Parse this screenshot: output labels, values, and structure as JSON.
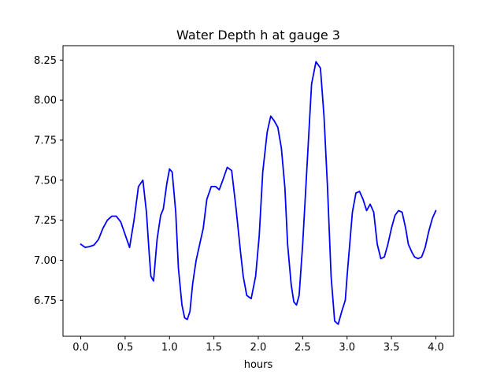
{
  "chart_data": {
    "type": "line",
    "title": "Water Depth h at gauge 3",
    "xlabel": "hours",
    "ylabel": "",
    "xlim": [
      -0.2,
      4.2
    ],
    "ylim": [
      6.525,
      8.34
    ],
    "xticks": [
      "0.0",
      "0.5",
      "1.0",
      "1.5",
      "2.0",
      "2.5",
      "3.0",
      "3.5",
      "4.0"
    ],
    "yticks": [
      "6.75",
      "7.00",
      "7.25",
      "7.50",
      "7.75",
      "8.00",
      "8.25"
    ],
    "grid": false,
    "series_color": "#0000ff",
    "series": [
      {
        "x": [
          0.0,
          0.05,
          0.1,
          0.15,
          0.2,
          0.25,
          0.3,
          0.35,
          0.4,
          0.45,
          0.5,
          0.55,
          0.6,
          0.65,
          0.7,
          0.74,
          0.77,
          0.79,
          0.82,
          0.86,
          0.9,
          0.93,
          0.97,
          1.0,
          1.03,
          1.07,
          1.1,
          1.14,
          1.17,
          1.2,
          1.23,
          1.26,
          1.3,
          1.34,
          1.38,
          1.42,
          1.47,
          1.52,
          1.56,
          1.6,
          1.65,
          1.7,
          1.75,
          1.8,
          1.83,
          1.87,
          1.92,
          1.97,
          2.01,
          2.05,
          2.1,
          2.14,
          2.18,
          2.22,
          2.26,
          2.3,
          2.33,
          2.37,
          2.4,
          2.43,
          2.46,
          2.5,
          2.55,
          2.6,
          2.65,
          2.7,
          2.74,
          2.78,
          2.82,
          2.86,
          2.9,
          2.94,
          2.98,
          3.0,
          3.03,
          3.06,
          3.1,
          3.14,
          3.18,
          3.22,
          3.26,
          3.3,
          3.34,
          3.38,
          3.42,
          3.46,
          3.5,
          3.54,
          3.58,
          3.62,
          3.66,
          3.69,
          3.73,
          3.76,
          3.8,
          3.84,
          3.88,
          3.92,
          3.96,
          4.0
        ],
        "y": [
          7.1,
          7.08,
          7.085,
          7.095,
          7.13,
          7.2,
          7.25,
          7.275,
          7.275,
          7.24,
          7.16,
          7.08,
          7.25,
          7.46,
          7.5,
          7.3,
          7.05,
          6.9,
          6.87,
          7.13,
          7.28,
          7.32,
          7.48,
          7.57,
          7.55,
          7.3,
          6.95,
          6.72,
          6.64,
          6.63,
          6.68,
          6.85,
          7.0,
          7.1,
          7.2,
          7.38,
          7.46,
          7.46,
          7.44,
          7.5,
          7.58,
          7.56,
          7.32,
          7.05,
          6.9,
          6.78,
          6.76,
          6.9,
          7.15,
          7.55,
          7.8,
          7.9,
          7.87,
          7.83,
          7.7,
          7.45,
          7.1,
          6.85,
          6.74,
          6.72,
          6.78,
          7.1,
          7.6,
          8.1,
          8.24,
          8.2,
          7.9,
          7.45,
          6.9,
          6.62,
          6.6,
          6.68,
          6.75,
          6.9,
          7.1,
          7.3,
          7.42,
          7.43,
          7.38,
          7.31,
          7.35,
          7.3,
          7.1,
          7.01,
          7.02,
          7.1,
          7.2,
          7.28,
          7.31,
          7.3,
          7.2,
          7.1,
          7.05,
          7.02,
          7.01,
          7.02,
          7.08,
          7.18,
          7.26,
          7.31
        ]
      }
    ]
  }
}
